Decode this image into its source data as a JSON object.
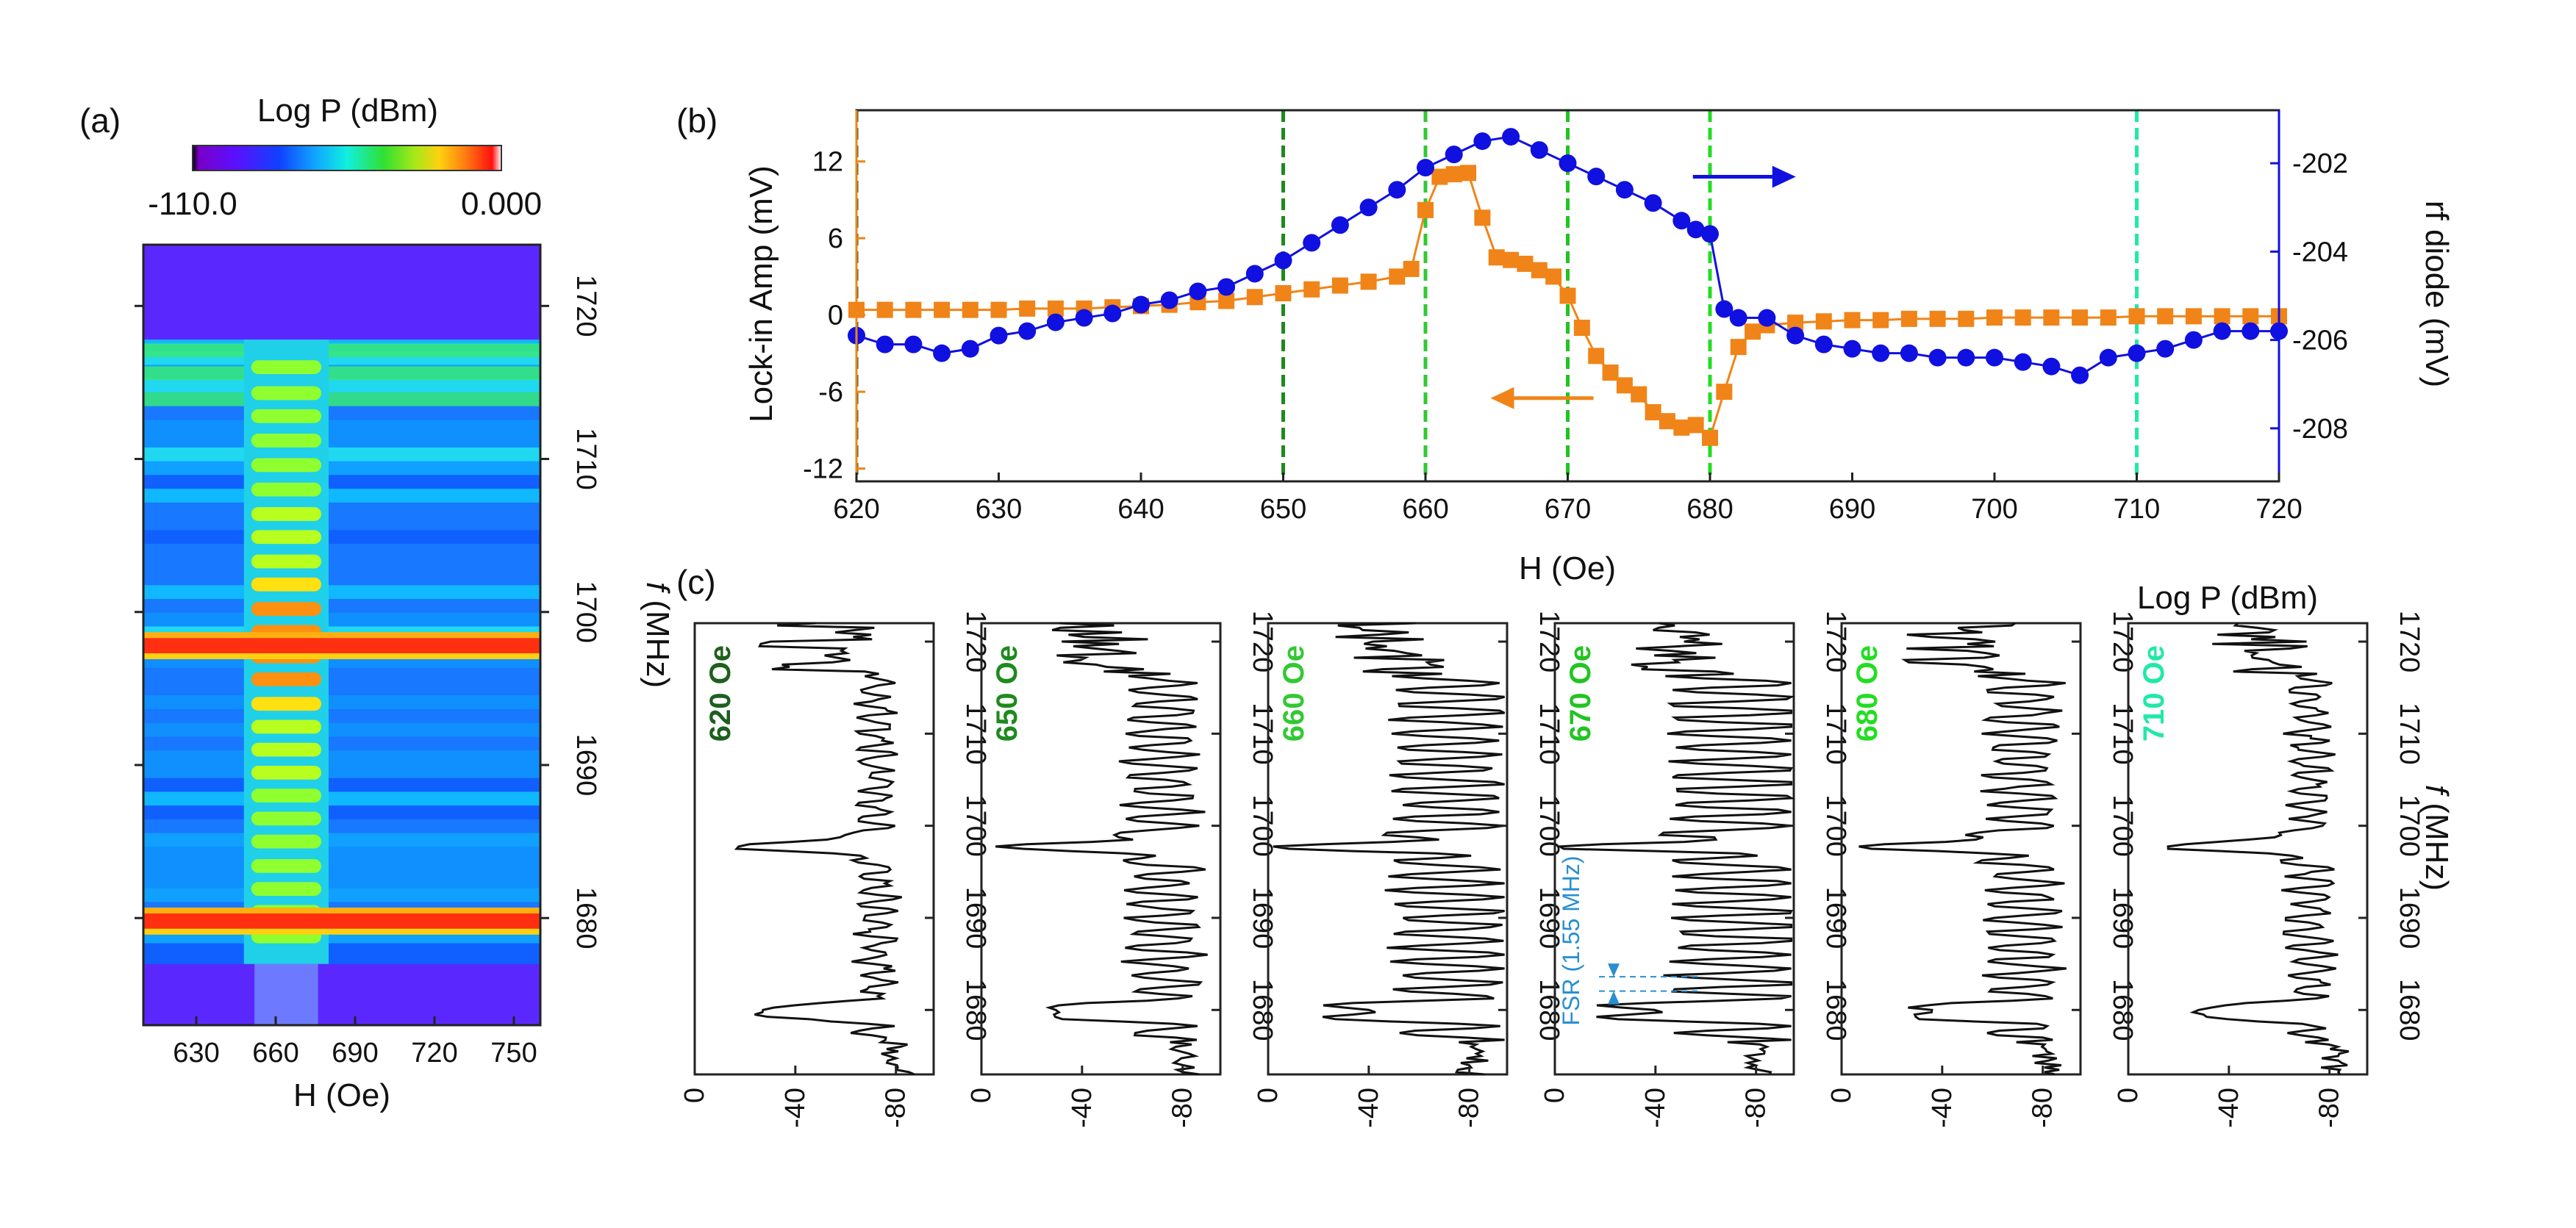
{
  "figure": {
    "panels": [
      {
        "id": "a",
        "label": "(a)"
      },
      {
        "id": "b",
        "label": "(b)"
      },
      {
        "id": "c",
        "label": "(c)"
      }
    ]
  },
  "colors": {
    "orange": "#f08418",
    "blue": "#1010e0",
    "black": "#000000",
    "field_620": "#1e5f1e",
    "field_650": "#1e8a1e",
    "field_660": "#33c833",
    "field_670": "#22c422",
    "field_680": "#22dd22",
    "field_710": "#22e8a8"
  },
  "chart_data": [
    {
      "id": "panel-a",
      "type": "heatmap",
      "title": "Log P (dBm)",
      "xlabel": "H (Oe)",
      "ylabel": "f (MHz)",
      "ylabel_italic": "f",
      "ylabel_rest": " (MHz)",
      "xlim": [
        610,
        760
      ],
      "ylim": [
        1673,
        1724
      ],
      "xticks": [
        630,
        660,
        690,
        720,
        750
      ],
      "yticks": [
        1680,
        1690,
        1700,
        1710,
        1720
      ],
      "colorbar": {
        "min": -110.0,
        "max": 0.0,
        "min_label": "-110.0",
        "max_label": "0.000"
      },
      "strong_lines_MHz": [
        1697.8,
        1679.8
      ],
      "mode_band_H": [
        648,
        680
      ],
      "mode_lines_MHz": [
        1716.0,
        1714.3,
        1712.8,
        1711.2,
        1709.6,
        1708.0,
        1706.4,
        1704.9,
        1703.3,
        1701.8,
        1700.2,
        1698.7,
        1697.1,
        1695.6,
        1694.0,
        1692.5,
        1691.0,
        1689.5,
        1688.0,
        1686.5,
        1685.0,
        1683.4,
        1681.9,
        1680.4,
        1678.8
      ]
    },
    {
      "id": "panel-b",
      "type": "scatter",
      "xlabel": "H (Oe)",
      "ylabel_left": "Lock-in Amp (mV)",
      "ylabel_right": "rf diode (mV)",
      "xlim": [
        620,
        720
      ],
      "ylim_left": [
        -13,
        16
      ],
      "ylim_right": [
        -209.2,
        -200.8
      ],
      "xticks": [
        620,
        630,
        640,
        650,
        660,
        670,
        680,
        690,
        700,
        710,
        720
      ],
      "yticks_left": [
        -12,
        -6,
        0,
        6,
        12
      ],
      "yticks_right": [
        -208,
        -206,
        -204,
        -202
      ],
      "vertical_lines": [
        {
          "x": 620,
          "color": "#1e5f1e"
        },
        {
          "x": 650,
          "color": "#1e8a1e"
        },
        {
          "x": 660,
          "color": "#33c833"
        },
        {
          "x": 670,
          "color": "#22c422"
        },
        {
          "x": 680,
          "color": "#22dd22"
        },
        {
          "x": 710,
          "color": "#22e8a8"
        }
      ],
      "series": [
        {
          "name": "Lock-in Amp",
          "axis": "left",
          "marker": "square",
          "x": [
            620,
            622,
            624,
            626,
            628,
            630,
            632,
            634,
            636,
            638,
            640,
            642,
            644,
            646,
            648,
            650,
            652,
            654,
            656,
            658,
            659,
            660,
            661,
            662,
            663,
            664,
            665,
            666,
            667,
            668,
            669,
            670,
            671,
            672,
            673,
            674,
            675,
            676,
            677,
            678,
            679,
            680,
            681,
            682,
            683,
            684,
            686,
            688,
            690,
            692,
            694,
            696,
            698,
            700,
            702,
            704,
            706,
            708,
            710,
            712,
            714,
            716,
            718,
            720
          ],
          "values": [
            0.4,
            0.4,
            0.4,
            0.4,
            0.4,
            0.4,
            0.5,
            0.5,
            0.5,
            0.6,
            0.7,
            0.8,
            1.0,
            1.1,
            1.4,
            1.7,
            2.0,
            2.3,
            2.6,
            3.0,
            3.6,
            8.2,
            10.8,
            11.0,
            11.1,
            7.6,
            4.5,
            4.3,
            4.0,
            3.5,
            3.0,
            1.5,
            -1.0,
            -3.2,
            -4.5,
            -5.5,
            -6.2,
            -7.6,
            -8.3,
            -8.8,
            -8.6,
            -9.6,
            -6.0,
            -2.5,
            -1.3,
            -0.8,
            -0.6,
            -0.5,
            -0.4,
            -0.4,
            -0.3,
            -0.3,
            -0.3,
            -0.2,
            -0.2,
            -0.2,
            -0.2,
            -0.2,
            -0.1,
            -0.1,
            -0.1,
            -0.1,
            -0.1,
            -0.1
          ]
        },
        {
          "name": "rf diode",
          "axis": "right",
          "marker": "circle",
          "x": [
            620,
            622,
            624,
            626,
            628,
            630,
            632,
            634,
            636,
            638,
            640,
            642,
            644,
            646,
            648,
            650,
            652,
            654,
            656,
            658,
            660,
            662,
            664,
            666,
            668,
            670,
            672,
            674,
            676,
            678,
            679,
            680,
            681,
            682,
            684,
            686,
            688,
            690,
            692,
            694,
            696,
            698,
            700,
            702,
            704,
            706,
            708,
            710,
            712,
            714,
            716,
            718,
            720
          ],
          "values": [
            -205.9,
            -206.1,
            -206.1,
            -206.3,
            -206.2,
            -205.9,
            -205.8,
            -205.6,
            -205.5,
            -205.4,
            -205.2,
            -205.1,
            -204.9,
            -204.8,
            -204.5,
            -204.2,
            -203.8,
            -203.4,
            -203.0,
            -202.6,
            -202.1,
            -201.8,
            -201.5,
            -201.4,
            -201.7,
            -202.0,
            -202.3,
            -202.6,
            -202.9,
            -203.3,
            -203.5,
            -203.6,
            -205.3,
            -205.5,
            -205.5,
            -205.9,
            -206.1,
            -206.2,
            -206.3,
            -206.3,
            -206.4,
            -206.4,
            -206.4,
            -206.5,
            -206.6,
            -206.8,
            -206.4,
            -206.3,
            -206.2,
            -206.0,
            -205.8,
            -205.8,
            -205.8
          ]
        }
      ],
      "annotations": [
        {
          "text": "arrow-left-orange",
          "x": 670,
          "y_left": -6.5
        },
        {
          "text": "arrow-right-blue",
          "x": 685,
          "y_left": 10.8
        }
      ]
    },
    {
      "id": "panel-c",
      "type": "line",
      "title": "Log P (dBm)",
      "ylabel": "f (MHz)",
      "ylabel_italic": "f",
      "ylabel_rest": " (MHz)",
      "xlim": [
        0,
        -95
      ],
      "ylim": [
        1673,
        1722
      ],
      "xticks": [
        0,
        -40,
        -80
      ],
      "xtick_labels": [
        "0",
        "-40",
        "-80"
      ],
      "yticks": [
        1680,
        1690,
        1700,
        1710,
        1720
      ],
      "annotation": "FSR (1.55 MHz)",
      "fsr_MHz": 1.55,
      "subplots": [
        {
          "field": "620 Oe",
          "color": "#1e5f1e",
          "oscillation_depth": 0.25
        },
        {
          "field": "650 Oe",
          "color": "#1e8a1e",
          "oscillation_depth": 0.55
        },
        {
          "field": "660 Oe",
          "color": "#33c833",
          "oscillation_depth": 0.85
        },
        {
          "field": "670 Oe",
          "color": "#22c422",
          "oscillation_depth": 1.0
        },
        {
          "field": "680 Oe",
          "color": "#22dd22",
          "oscillation_depth": 0.55
        },
        {
          "field": "710 Oe",
          "color": "#22e8a8",
          "oscillation_depth": 0.3
        }
      ]
    }
  ]
}
